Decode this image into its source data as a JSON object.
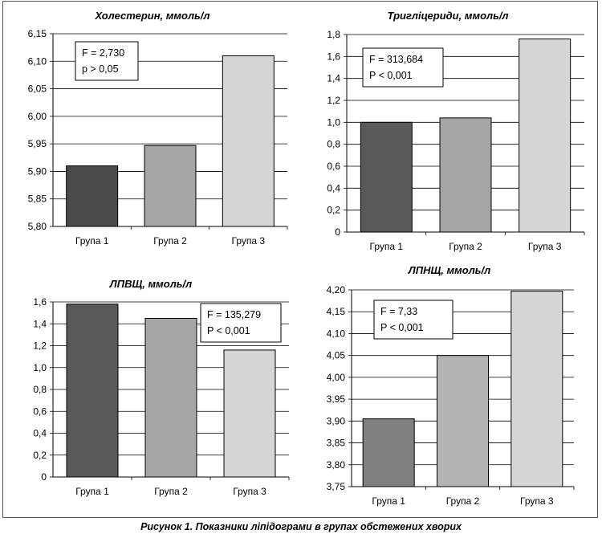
{
  "caption": "Рисунок 1. Показники ліпідограми в групах обстежених хворих",
  "chart_data": [
    {
      "type": "bar",
      "title": "Холестерин, ммоль/л",
      "categories": [
        "Група 1",
        "Група 2",
        "Група 3"
      ],
      "values": [
        5.91,
        5.947,
        6.11
      ],
      "colors": [
        "#4a4a4a",
        "#a6a6a6",
        "#d6d6d6"
      ],
      "ylim": [
        5.8,
        6.15
      ],
      "yticks": [
        "5,80",
        "5,85",
        "5,90",
        "5,95",
        "6,00",
        "6,05",
        "6,10",
        "6,15"
      ],
      "grid": true,
      "stats": [
        "F = 2,730",
        "p > 0,05"
      ]
    },
    {
      "type": "bar",
      "title": "Тригліцериди, ммоль/л",
      "categories": [
        "Група 1",
        "Група 2",
        "Група 3"
      ],
      "values": [
        1.0,
        1.04,
        1.76
      ],
      "colors": [
        "#595959",
        "#a6a6a6",
        "#d6d6d6"
      ],
      "ylim": [
        0,
        1.8
      ],
      "yticks": [
        "0",
        "0,2",
        "0,4",
        "0,6",
        "0,8",
        "1,0",
        "1,2",
        "1,4",
        "1,6",
        "1,8"
      ],
      "grid": true,
      "stats": [
        "F = 313,684",
        "P < 0,001"
      ]
    },
    {
      "type": "bar",
      "title": "ЛПВЩ, ммоль/л",
      "categories": [
        "Група 1",
        "Група 2",
        "Група 3"
      ],
      "values": [
        1.58,
        1.45,
        1.16
      ],
      "colors": [
        "#595959",
        "#a6a6a6",
        "#d6d6d6"
      ],
      "ylim": [
        0,
        1.6
      ],
      "yticks": [
        "0",
        "0,2",
        "0,4",
        "0,6",
        "0,8",
        "1,0",
        "1,2",
        "1,4",
        "1,6"
      ],
      "grid": true,
      "stats": [
        "F = 135,279",
        "P < 0,001"
      ]
    },
    {
      "type": "bar",
      "title": "ЛПНЩ, ммоль/л",
      "categories": [
        "Група 1",
        "Група 2",
        "Група 3"
      ],
      "values": [
        3.905,
        4.05,
        4.197
      ],
      "colors": [
        "#808080",
        "#b3b3b3",
        "#d6d6d6"
      ],
      "ylim": [
        3.75,
        4.2
      ],
      "yticks": [
        "3,75",
        "3,80",
        "3,85",
        "3,90",
        "3,95",
        "4,00",
        "4,05",
        "4,10",
        "4,15",
        "4,20"
      ],
      "grid": true,
      "stats": [
        "F = 7,33",
        "P < 0,001"
      ]
    }
  ]
}
